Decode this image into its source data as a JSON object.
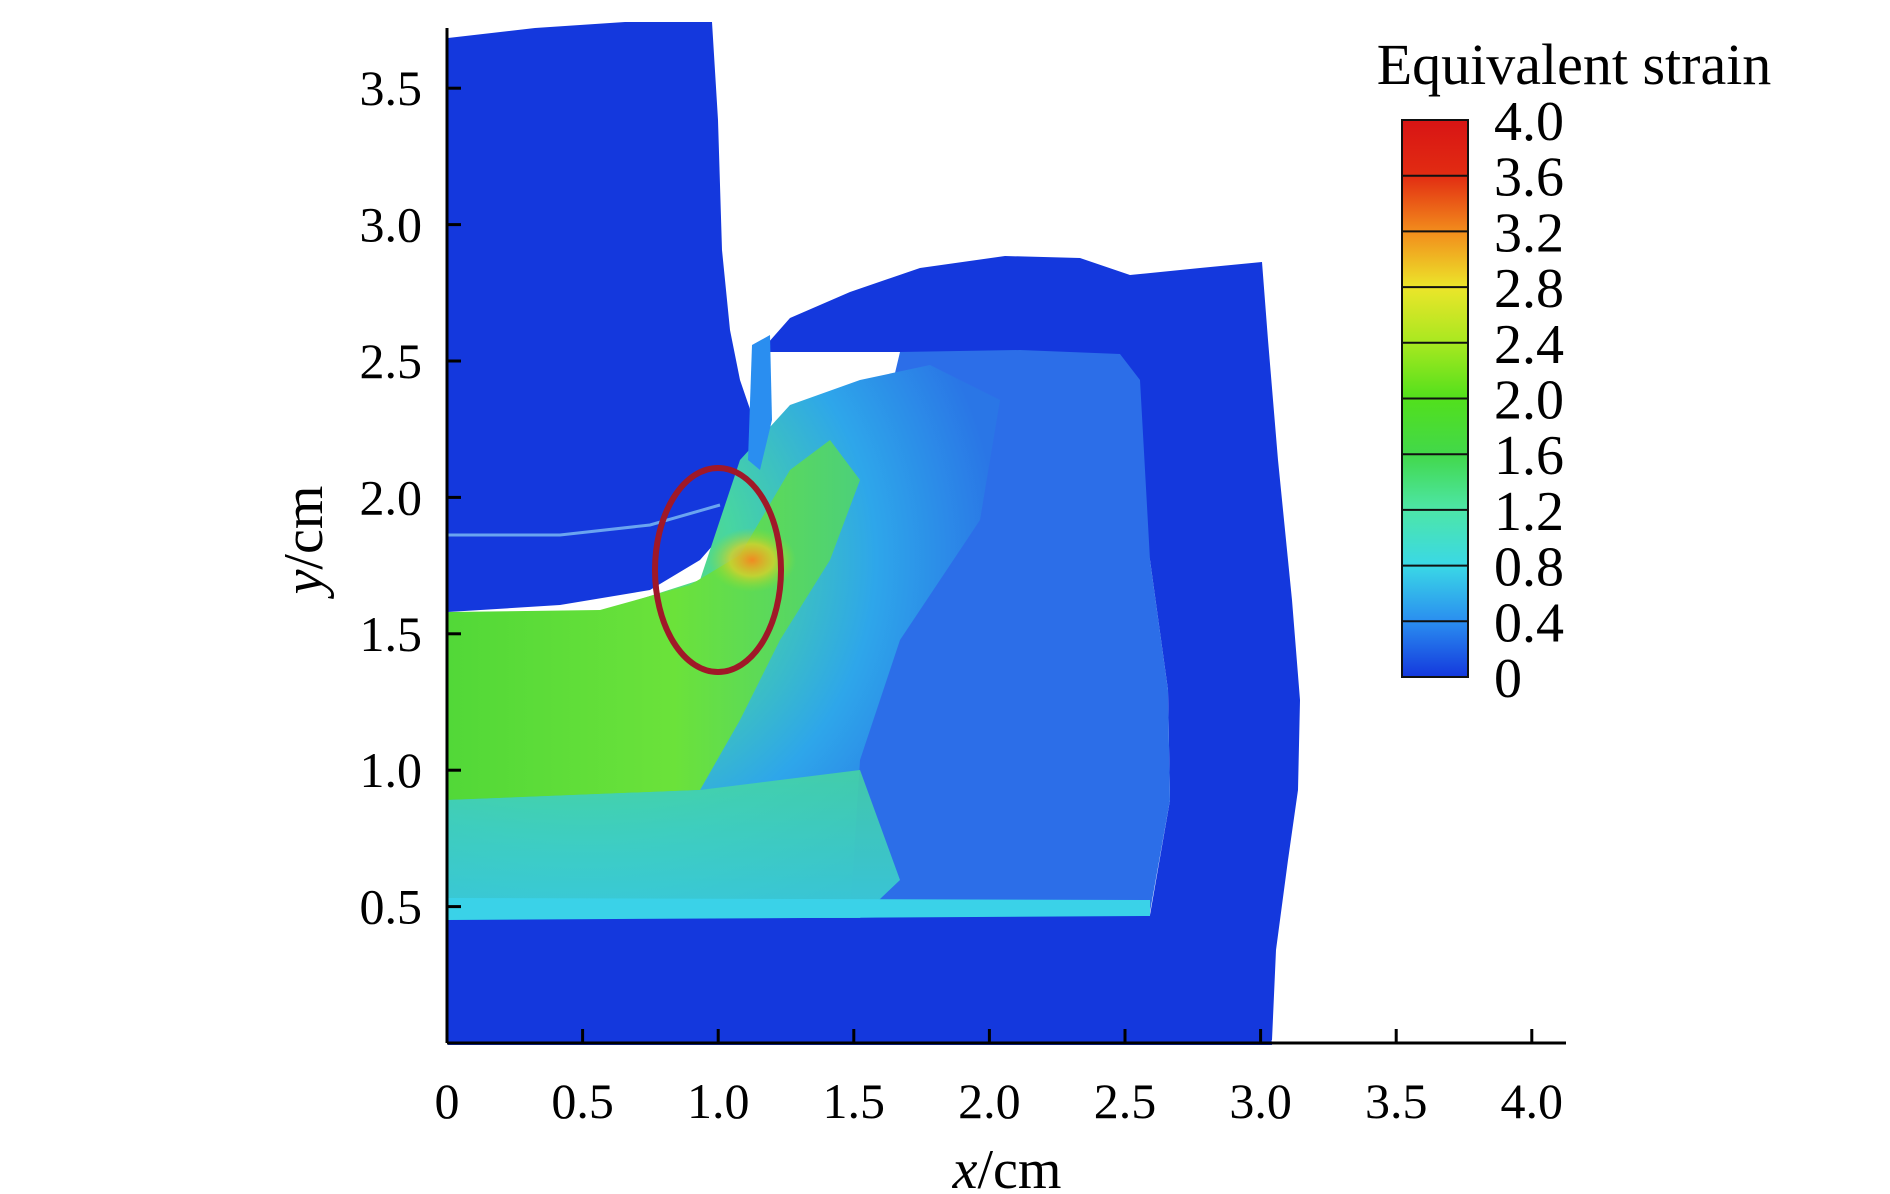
{
  "chart_data": {
    "type": "heatmap",
    "title": "",
    "xlabel": {
      "var": "x",
      "unit": "/cm"
    },
    "ylabel": {
      "var": "y",
      "unit": "/cm"
    },
    "xlim": [
      0,
      4.0
    ],
    "ylim": [
      0,
      3.75
    ],
    "x_ticks": [
      "0",
      "0.5",
      "1.0",
      "1.5",
      "2.0",
      "2.5",
      "3.0",
      "3.5",
      "4.0"
    ],
    "y_ticks": [
      "0.5",
      "1.0",
      "1.5",
      "2.0",
      "2.5",
      "3.0",
      "3.5"
    ],
    "colorbar": {
      "title": "Equivalent strain",
      "labels": [
        "4.0",
        "3.6",
        "3.2",
        "2.8",
        "2.4",
        "2.0",
        "1.6",
        "1.2",
        "0.8",
        "0.4",
        "0"
      ],
      "min": 0,
      "max": 4.0,
      "colors": [
        "#1438dd",
        "#2a8ef0",
        "#3ad8e6",
        "#4de6a8",
        "#42d84a",
        "#52e01c",
        "#a8e820",
        "#ece52a",
        "#f28c1c",
        "#e22c12",
        "#d81414"
      ]
    },
    "regions": [
      {
        "region": "upper die",
        "strain": 0.0
      },
      {
        "region": "lower die",
        "strain": 0.0
      },
      {
        "region": "right die",
        "strain": 0.0
      },
      {
        "region": "workpiece left band",
        "strain": 1.8
      },
      {
        "region": "workpiece center",
        "strain": 0.7
      },
      {
        "region": "workpiece right block",
        "strain": 0.35
      },
      {
        "region": "contact corner (circled)",
        "strain": 2.9
      }
    ],
    "annotation": {
      "shape": "ellipse",
      "cx": 1.05,
      "cy": 1.77,
      "rx": 0.24,
      "ry": 0.38,
      "color": "#a01828"
    },
    "grid": false,
    "colors": {
      "die": "#1438dd",
      "annotation": "#a01828"
    }
  }
}
